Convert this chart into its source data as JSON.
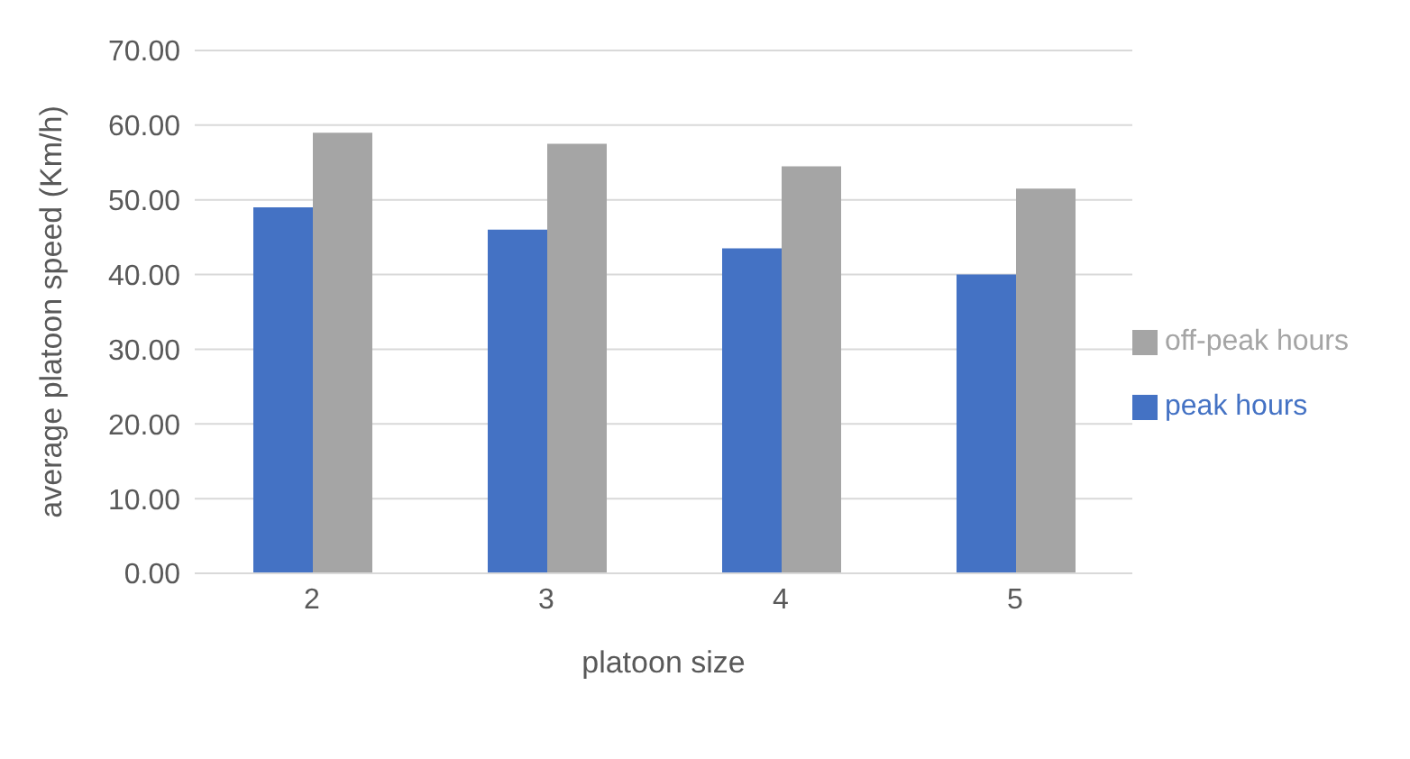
{
  "chart_data": {
    "type": "bar",
    "xlabel": "platoon size",
    "ylabel": "average platoon speed (Km/h)",
    "categories": [
      "2",
      "3",
      "4",
      "5"
    ],
    "series": [
      {
        "name": "peak hours",
        "color": "#4472c4",
        "values": [
          49,
          46,
          43.5,
          40
        ]
      },
      {
        "name": "off-peak hours",
        "color": "#a5a5a5",
        "values": [
          59,
          57.5,
          54.5,
          51.5
        ]
      }
    ],
    "ylim": [
      0,
      70
    ],
    "yticks": [
      {
        "value": 0,
        "label": "0.00"
      },
      {
        "value": 10,
        "label": "10.00"
      },
      {
        "value": 20,
        "label": "20.00"
      },
      {
        "value": 30,
        "label": "30.00"
      },
      {
        "value": 40,
        "label": "40.00"
      },
      {
        "value": 50,
        "label": "50.00"
      },
      {
        "value": 60,
        "label": "60.00"
      },
      {
        "value": 70,
        "label": "70.00"
      }
    ],
    "grid": "y",
    "legend": "right"
  }
}
